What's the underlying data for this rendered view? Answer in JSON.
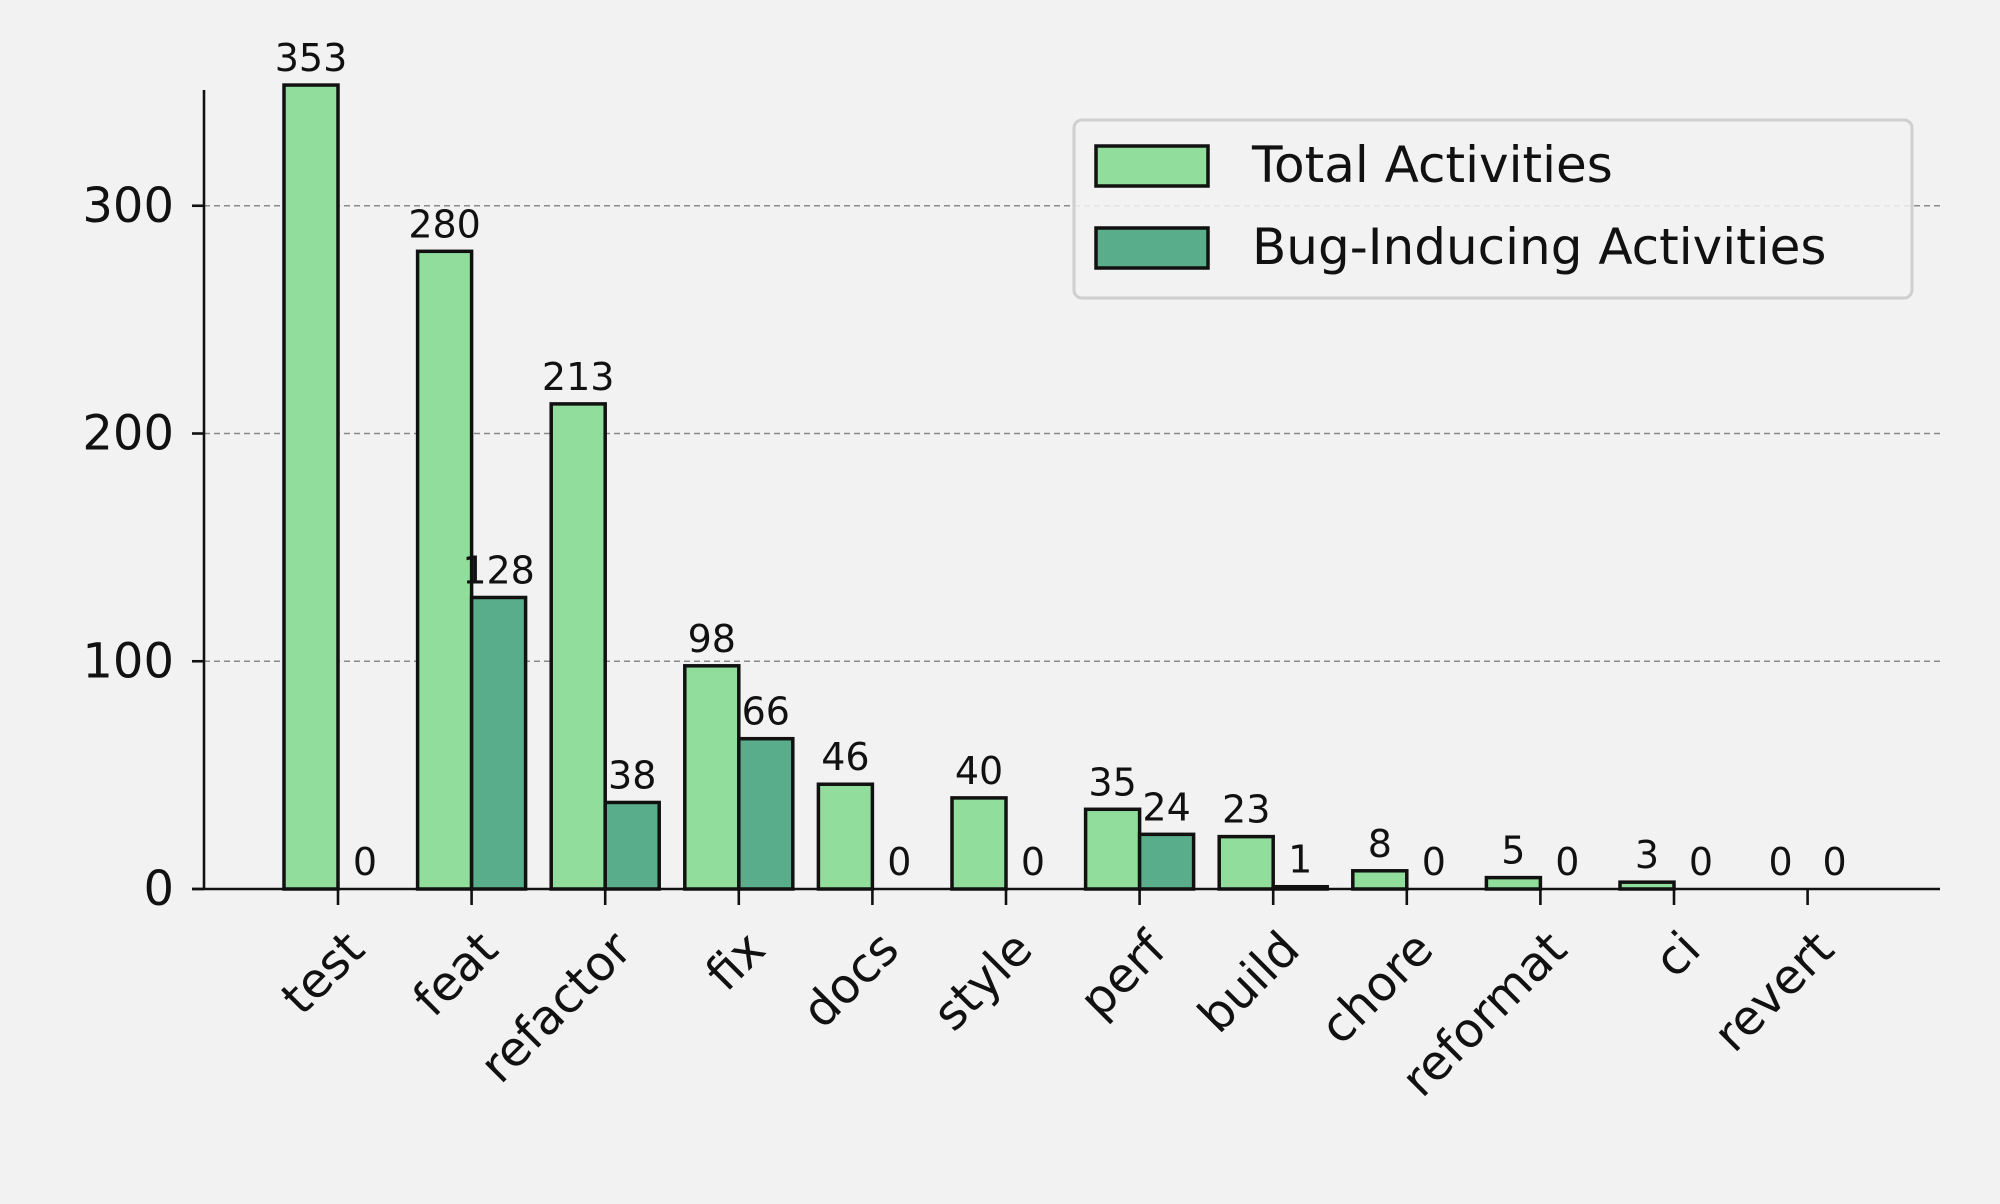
{
  "chart_data": {
    "type": "bar",
    "title": "",
    "xlabel": "",
    "ylabel": "",
    "categories": [
      "test",
      "feat",
      "refactor",
      "fix",
      "docs",
      "style",
      "perf",
      "build",
      "chore",
      "reformat",
      "ci",
      "revert"
    ],
    "series": [
      {
        "name": "Total Activities",
        "values": [
          353,
          280,
          213,
          98,
          46,
          40,
          35,
          23,
          8,
          5,
          3,
          0
        ],
        "color": "#90dd9c"
      },
      {
        "name": "Bug-Inducing Activities",
        "values": [
          0,
          128,
          38,
          66,
          0,
          0,
          24,
          1,
          0,
          0,
          0,
          0
        ],
        "color": "#5aad8a"
      }
    ],
    "ylim": [
      0,
      364
    ],
    "yticks": [
      0,
      100,
      200,
      300
    ],
    "grid": "horizontal-dashed",
    "legend_position": "top-right",
    "data_labels": true,
    "edge_color": "#111111",
    "grid_color": "#8a8a8a"
  }
}
